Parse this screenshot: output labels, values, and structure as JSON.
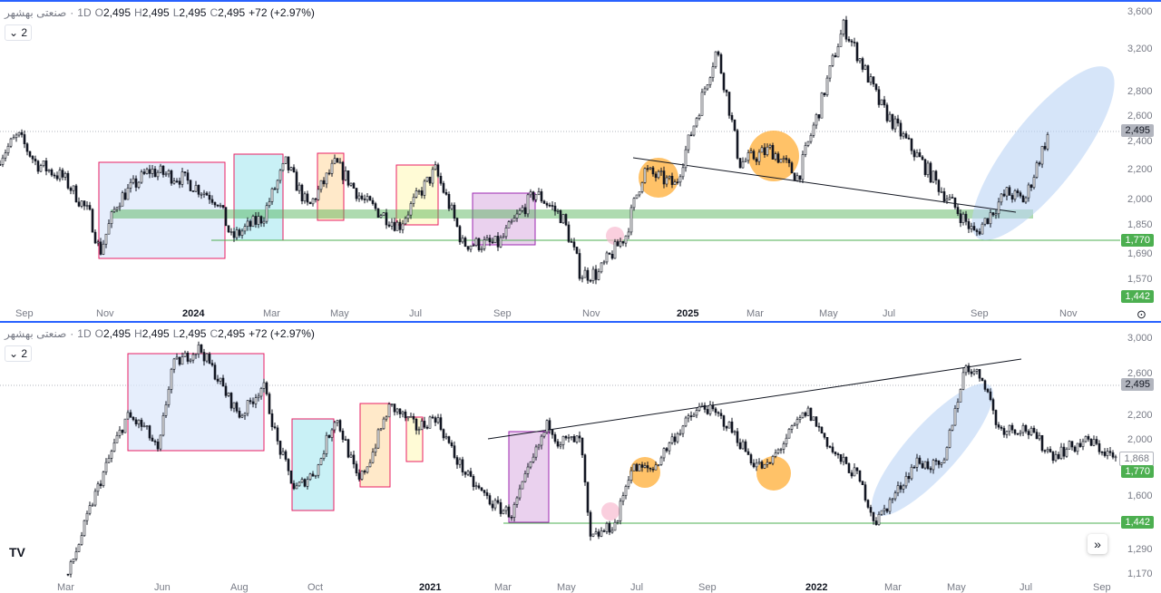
{
  "symbol": "صنعتی بهشهر",
  "interval": "1D",
  "ohlc": {
    "o_label": "O",
    "o": "2,495",
    "h_label": "H",
    "h": "2,495",
    "l_label": "L",
    "l": "2,495",
    "c_label": "C",
    "c": "2,495",
    "change": "+72 (+2.97%)"
  },
  "collapse_label": "2",
  "top": {
    "price_ticks": [
      "3,600",
      "3,200",
      "2,800",
      "2,600",
      "2,400",
      "2,200",
      "2,000",
      "1,850",
      "1,690",
      "1,570"
    ],
    "time_ticks": [
      "Sep",
      "Nov",
      "2024",
      "Mar",
      "May",
      "Jul",
      "Sep",
      "Nov",
      "2025",
      "Mar",
      "May",
      "Jul",
      "Sep",
      "Nov"
    ],
    "last_price": "2,495",
    "support_1": "1,770",
    "support_2": "1,442"
  },
  "bottom": {
    "price_ticks": [
      "3,000",
      "2,600",
      "2,200",
      "2,000",
      "1,600",
      "1,290",
      "1,170"
    ],
    "time_ticks": [
      "Mar",
      "Jun",
      "Aug",
      "Oct",
      "2021",
      "Mar",
      "May",
      "Jul",
      "Sep",
      "2022",
      "Mar",
      "May",
      "Jul",
      "Sep"
    ],
    "last_price": "2,495",
    "close_price": "1,868",
    "support_1": "1,770",
    "support_2": "1,442"
  },
  "colors": {
    "accent": "#2962ff",
    "green": "#4caf50",
    "candle": "#131722"
  },
  "logo": "TV"
}
